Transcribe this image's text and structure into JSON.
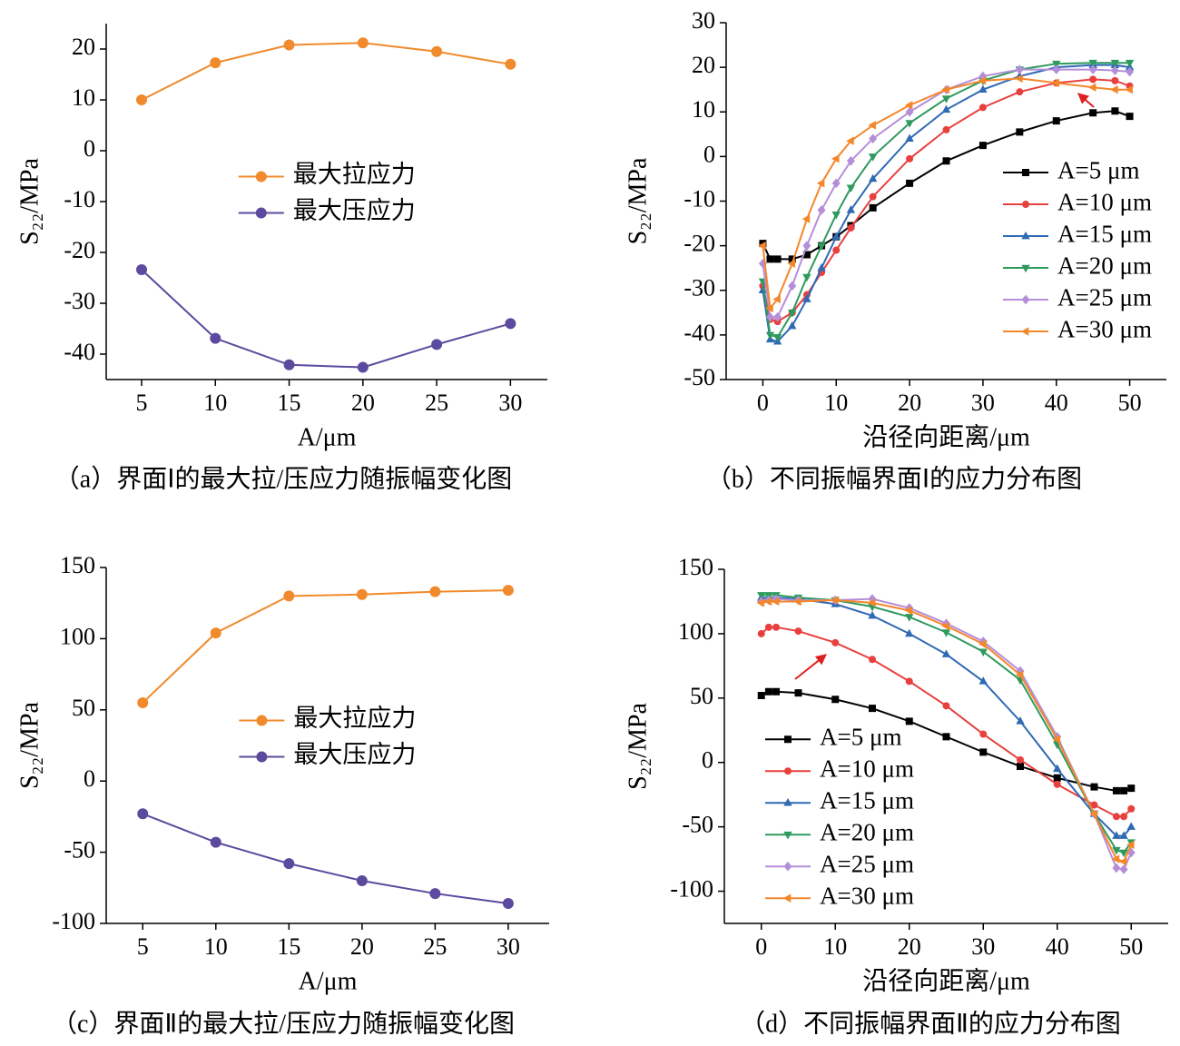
{
  "chart_data": [
    {
      "type": "line",
      "caption": "（a）界面Ⅰ的最大拉/压应力随振幅变化图",
      "xlabel": "A/μm",
      "ylabel": "S₂₂/MPa",
      "x": [
        5,
        10,
        15,
        20,
        25,
        30
      ],
      "xlim": [
        2.6,
        32.5
      ],
      "xticks": [
        5,
        10,
        15,
        20,
        25,
        30
      ],
      "ylim": [
        -45,
        25
      ],
      "yticks": [
        -40,
        -30,
        -20,
        -10,
        0,
        10,
        20
      ],
      "legend": "center",
      "series": [
        {
          "name": "最大拉应力",
          "color": "#f08a2c",
          "marker": "circle",
          "values": [
            10,
            17.3,
            20.8,
            21.2,
            19.5,
            17
          ]
        },
        {
          "name": "最大压应力",
          "color": "#5b4a9e",
          "marker": "circle",
          "values": [
            -23.4,
            -36.9,
            -42.1,
            -42.6,
            -38.1,
            -34
          ]
        }
      ]
    },
    {
      "type": "line",
      "caption": "（b）不同振幅界面Ⅰ的应力分布图",
      "xlabel": "沿径向距离/μm",
      "ylabel": "S₂₂/MPa",
      "x": [
        0,
        1,
        2,
        4,
        6,
        8,
        10,
        12,
        15,
        20,
        25,
        30,
        35,
        40,
        45,
        48,
        50
      ],
      "xlim": [
        -5,
        55
      ],
      "xticks": [
        0,
        10,
        20,
        30,
        40,
        50
      ],
      "ylim": [
        -50,
        30
      ],
      "yticks": [
        -50,
        -40,
        -30,
        -20,
        -10,
        0,
        10,
        20,
        30
      ],
      "legend": "center right",
      "series": [
        {
          "name": "A=5 μm",
          "color": "#000000",
          "marker": "square",
          "values": [
            -19.5,
            -23,
            -23,
            -23,
            -22,
            -20,
            -18,
            -15.5,
            -11.5,
            -6,
            -1,
            2.5,
            5.5,
            8,
            9.8,
            10.2,
            9
          ]
        },
        {
          "name": "A=10 μm",
          "color": "#e8403e",
          "marker": "circle",
          "values": [
            -29,
            -36.5,
            -37,
            -35,
            -31,
            -26,
            -21,
            -16,
            -9,
            -0.5,
            6,
            11,
            14.5,
            16.5,
            17.3,
            17,
            15.8
          ]
        },
        {
          "name": "A=15 μm",
          "color": "#2f6ab4",
          "marker": "triangle-up",
          "values": [
            -30,
            -41,
            -41.5,
            -38,
            -32,
            -25,
            -18,
            -12,
            -5,
            4,
            10.5,
            15,
            18,
            20,
            20.5,
            20.5,
            20
          ]
        },
        {
          "name": "A=20 μm",
          "color": "#2e9a5e",
          "marker": "triangle-down",
          "values": [
            -28,
            -40,
            -40.5,
            -35,
            -27,
            -20,
            -13,
            -7,
            0,
            7.5,
            13,
            17,
            19.5,
            20.8,
            21,
            21,
            21
          ]
        },
        {
          "name": "A=25 μm",
          "color": "#b58ed8",
          "marker": "diamond",
          "values": [
            -24,
            -36,
            -36,
            -29,
            -20,
            -12,
            -6,
            -1,
            4,
            10,
            15,
            18,
            19.5,
            19.5,
            19.5,
            19.3,
            19
          ]
        },
        {
          "name": "A=30 μm",
          "color": "#f5862a",
          "marker": "triangle-left",
          "values": [
            -20,
            -34,
            -32,
            -24,
            -14,
            -6,
            -0.5,
            3.5,
            7,
            11.5,
            15,
            17,
            17.5,
            16.5,
            15.5,
            15,
            15
          ]
        }
      ]
    },
    {
      "type": "line",
      "caption": "（c）界面Ⅱ的最大拉/压应力随振幅变化图",
      "xlabel": "A/μm",
      "ylabel": "S₂₂/MPa",
      "x": [
        5,
        10,
        15,
        20,
        25,
        30
      ],
      "xlim": [
        2.5,
        32.8
      ],
      "xticks": [
        5,
        10,
        15,
        20,
        25,
        30
      ],
      "ylim": [
        -100,
        150
      ],
      "yticks": [
        -100,
        -50,
        0,
        50,
        100,
        150
      ],
      "legend": "center",
      "series": [
        {
          "name": "最大拉应力",
          "color": "#f08a2c",
          "marker": "circle",
          "values": [
            55,
            104,
            130,
            131,
            133,
            134
          ]
        },
        {
          "name": "最大压应力",
          "color": "#5b4a9e",
          "marker": "circle",
          "values": [
            -23,
            -43,
            -58,
            -70,
            -79,
            -86
          ]
        }
      ]
    },
    {
      "type": "line",
      "caption": "（d）不同振幅界面Ⅱ的应力分布图",
      "xlabel": "沿径向距离/μm",
      "ylabel": "S₂₂/MPa",
      "x": [
        0,
        1,
        2,
        5,
        10,
        15,
        20,
        25,
        30,
        35,
        40,
        45,
        48,
        49,
        50
      ],
      "xlim": [
        -5,
        55
      ],
      "xticks": [
        0,
        10,
        20,
        30,
        40,
        50
      ],
      "ylim": [
        -125,
        150
      ],
      "yticks": [
        -100,
        -50,
        0,
        50,
        100,
        150
      ],
      "legend": "lower left",
      "series": [
        {
          "name": "A=5 μm",
          "color": "#000000",
          "marker": "square",
          "values": [
            52,
            55,
            55,
            54,
            49,
            42,
            32,
            20,
            8,
            -3,
            -12,
            -19,
            -22,
            -22,
            -20
          ]
        },
        {
          "name": "A=10 μm",
          "color": "#e8403e",
          "marker": "circle",
          "values": [
            100,
            105,
            105,
            102,
            93,
            80,
            63,
            44,
            22,
            2,
            -17,
            -33,
            -42,
            -42,
            -36
          ]
        },
        {
          "name": "A=15 μm",
          "color": "#2f6ab4",
          "marker": "triangle-up",
          "values": [
            128,
            128,
            128,
            127,
            123,
            114,
            100,
            84,
            63,
            32,
            -5,
            -40,
            -57,
            -57,
            -50
          ]
        },
        {
          "name": "A=20 μm",
          "color": "#2e9a5e",
          "marker": "triangle-down",
          "values": [
            130,
            130,
            130,
            128,
            126,
            121,
            113,
            101,
            86,
            64,
            14,
            -40,
            -68,
            -70,
            -62
          ]
        },
        {
          "name": "A=25 μm",
          "color": "#b58ed8",
          "marker": "diamond",
          "values": [
            125,
            126,
            127,
            126,
            126,
            127,
            120,
            108,
            94,
            71,
            20,
            -40,
            -82,
            -83,
            -70
          ]
        },
        {
          "name": "A=30 μm",
          "color": "#f5862a",
          "marker": "triangle-left",
          "values": [
            124,
            125,
            125,
            125,
            126,
            124,
            118,
            106,
            92,
            68,
            18,
            -40,
            -75,
            -77,
            -64
          ]
        }
      ]
    }
  ]
}
